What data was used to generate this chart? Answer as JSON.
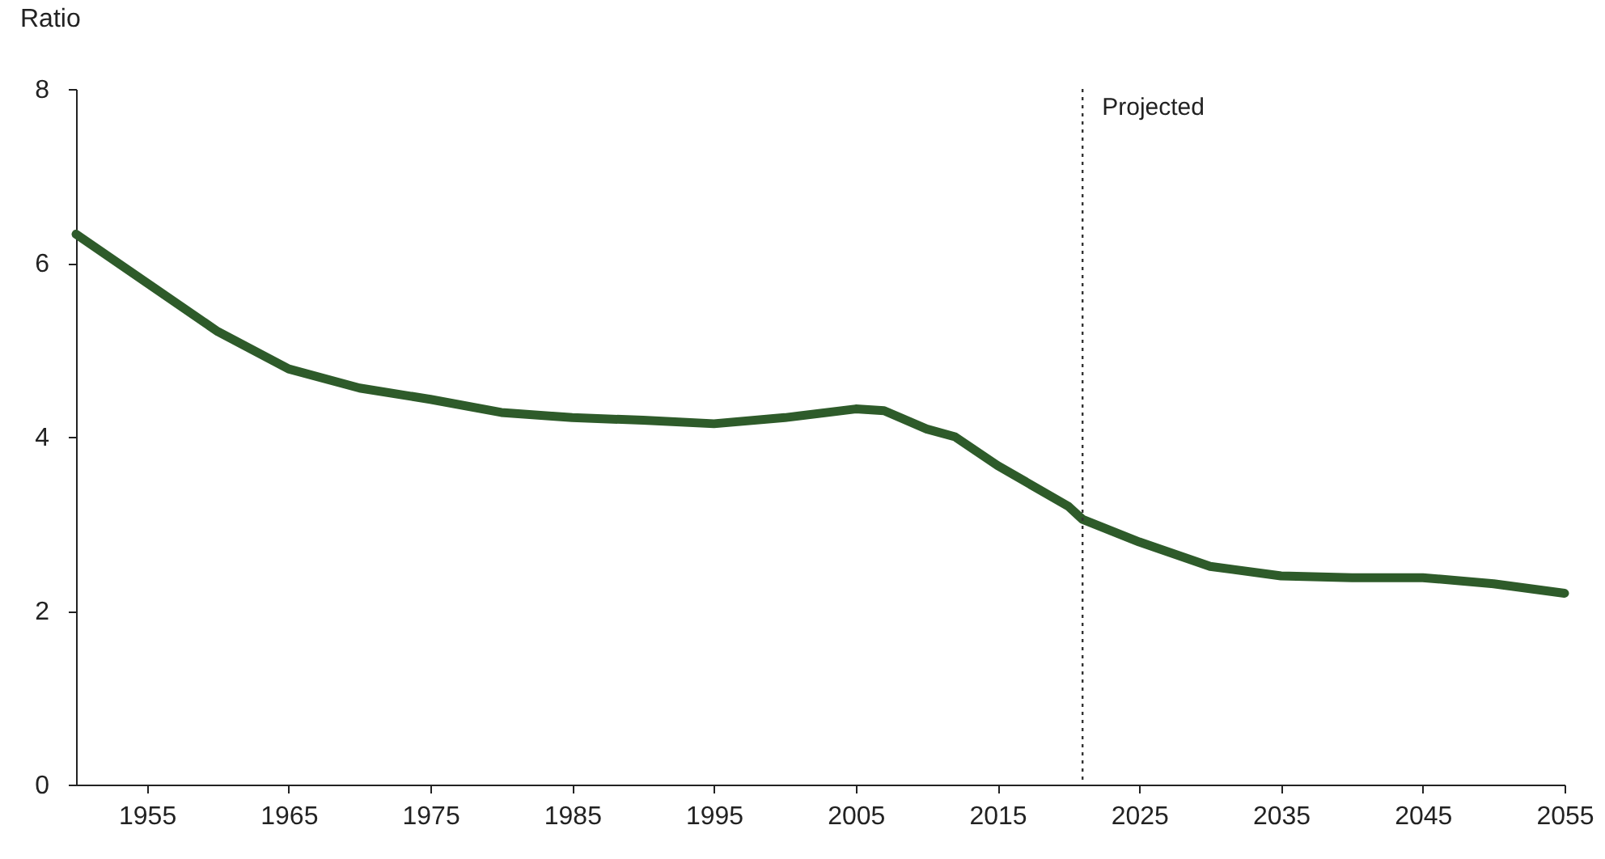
{
  "chart_data": {
    "type": "line",
    "ylabel": "Ratio",
    "x": [
      1950,
      1955,
      1960,
      1965,
      1970,
      1975,
      1980,
      1985,
      1990,
      1995,
      2000,
      2005,
      2007,
      2010,
      2012,
      2015,
      2020,
      2021,
      2025,
      2030,
      2035,
      2040,
      2045,
      2050,
      2055
    ],
    "series": [
      {
        "color": "#2e5b2a",
        "values": [
          6.33,
          5.77,
          5.21,
          4.78,
          4.56,
          4.43,
          4.28,
          4.22,
          4.19,
          4.15,
          4.22,
          4.32,
          4.3,
          4.09,
          4.0,
          3.67,
          3.2,
          3.05,
          2.79,
          2.51,
          2.4,
          2.38,
          2.38,
          2.31,
          2.2
        ]
      }
    ],
    "xlim": [
      1950,
      2055
    ],
    "xticks": [
      1955,
      1965,
      1975,
      1985,
      1995,
      2005,
      2015,
      2025,
      2035,
      2045,
      2055
    ],
    "ylim": [
      0,
      8
    ],
    "yticks": [
      0,
      2,
      4,
      6,
      8
    ],
    "ref_lines": [
      {
        "axis": "x",
        "value": 2021,
        "label": "Projected",
        "line_style": "dotted",
        "color": "#333333"
      }
    ],
    "grid": false,
    "marker": "none",
    "line_style": "solid"
  }
}
